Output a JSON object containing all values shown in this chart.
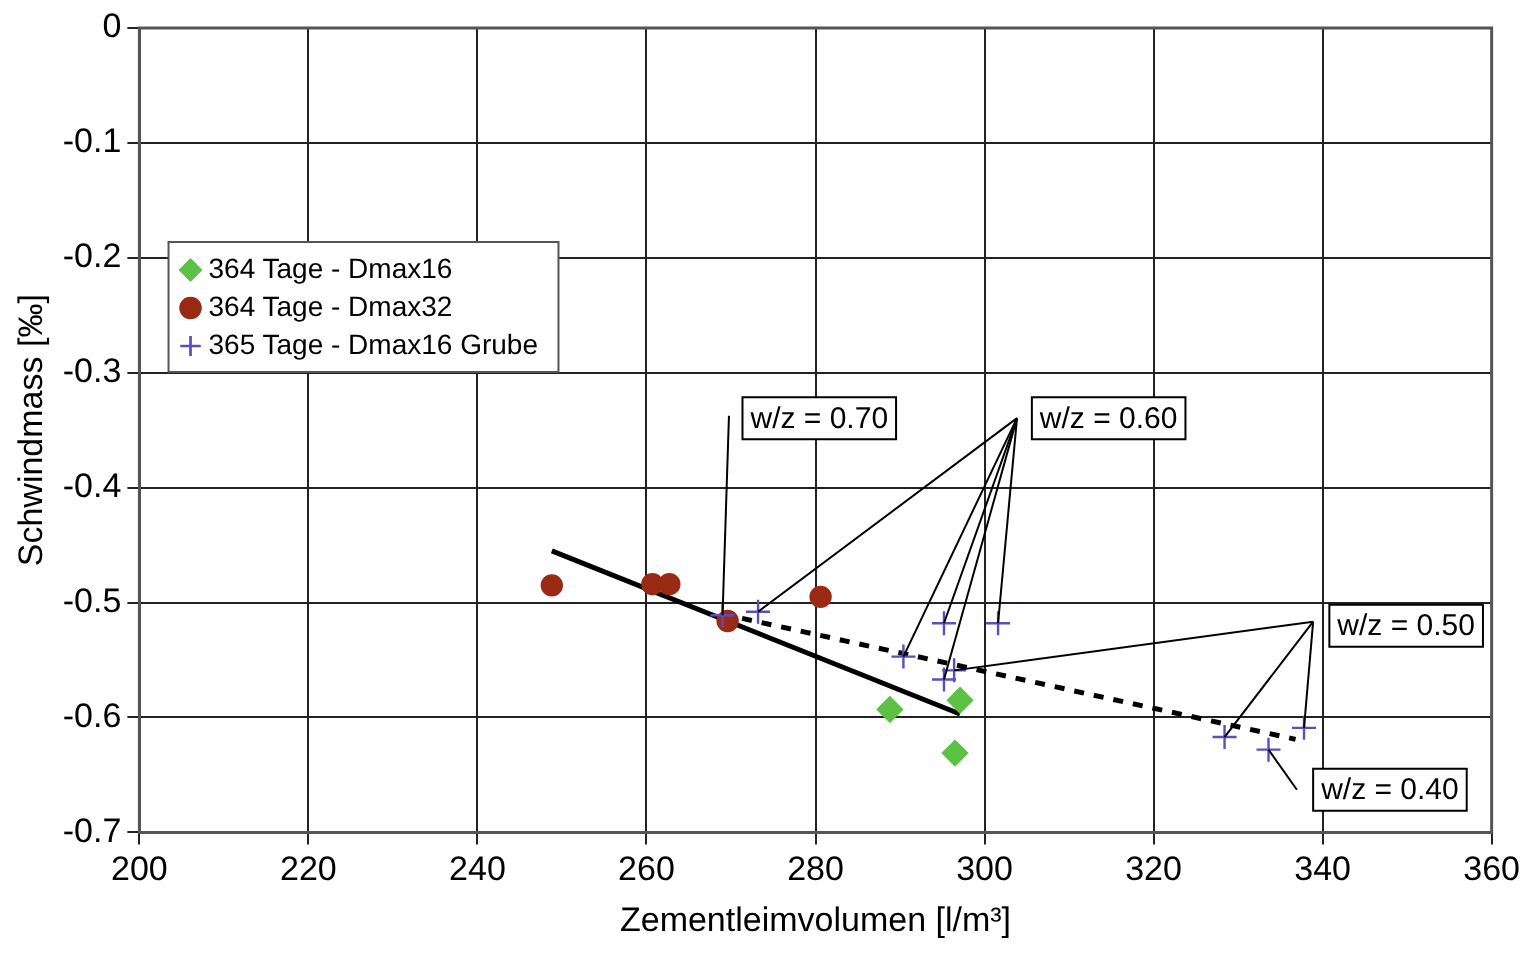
{
  "chart_data": {
    "type": "scatter",
    "xlabel": "Zementleimvolumen [l/m³]",
    "ylabel": "Schwindmass [‰]",
    "xlim": [
      200,
      360
    ],
    "xticks": [
      200,
      220,
      240,
      260,
      280,
      300,
      320,
      340,
      360
    ],
    "ylim": [
      -0.7,
      0
    ],
    "yticks": [
      -0.7,
      -0.6,
      -0.5,
      -0.4,
      -0.3,
      -0.2,
      -0.1,
      0
    ],
    "grid": true,
    "legend": "top left",
    "series": [
      {
        "name": "364 Tage - Dmax16",
        "color": "#5cc246",
        "marker": "diamond",
        "x": [
          288.8,
          297.1,
          296.5
        ],
        "values": [
          -0.593,
          -0.585,
          -0.631
        ]
      },
      {
        "name": "364 Tage - Dmax32",
        "color": "#9b2a14",
        "marker": "circle",
        "x": [
          248.8,
          260.7,
          262.7,
          280.6,
          269.6
        ],
        "values": [
          -0.485,
          -0.484,
          -0.484,
          -0.495,
          -0.516
        ]
      },
      {
        "name": "365 Tage - Dmax16 Grube",
        "color": "#5a4fc0",
        "marker": "cross",
        "x": [
          269.0,
          273.2,
          290.4,
          295.2,
          301.6,
          295.2,
          296.4,
          328.4,
          333.6,
          337.8
        ],
        "values": [
          -0.511,
          -0.508,
          -0.547,
          -0.518,
          -0.518,
          -0.567,
          -0.559,
          -0.617,
          -0.628,
          -0.609
        ]
      },
      {
        "type": "line",
        "color": "#000000",
        "marker": "none",
        "line_style": "solid",
        "x": [
          248.8,
          297.1
        ],
        "values": [
          -0.455,
          -0.597
        ]
      },
      {
        "type": "line",
        "color": "#000000",
        "marker": "none",
        "line_style": "dashed",
        "x": [
          269.0,
          336.8
        ],
        "values": [
          -0.51,
          -0.619
        ]
      }
    ],
    "annotations": [
      {
        "text": "w/z = 0.70",
        "x": 269.0,
        "y": -0.511
      },
      {
        "text": "w/z = 0.60",
        "x": 273.2,
        "y": -0.508
      },
      {
        "text": "w/z = 0.50",
        "x": 296.4,
        "y": -0.559
      },
      {
        "text": "w/z = 0.40",
        "x": 333.6,
        "y": -0.628
      }
    ]
  }
}
